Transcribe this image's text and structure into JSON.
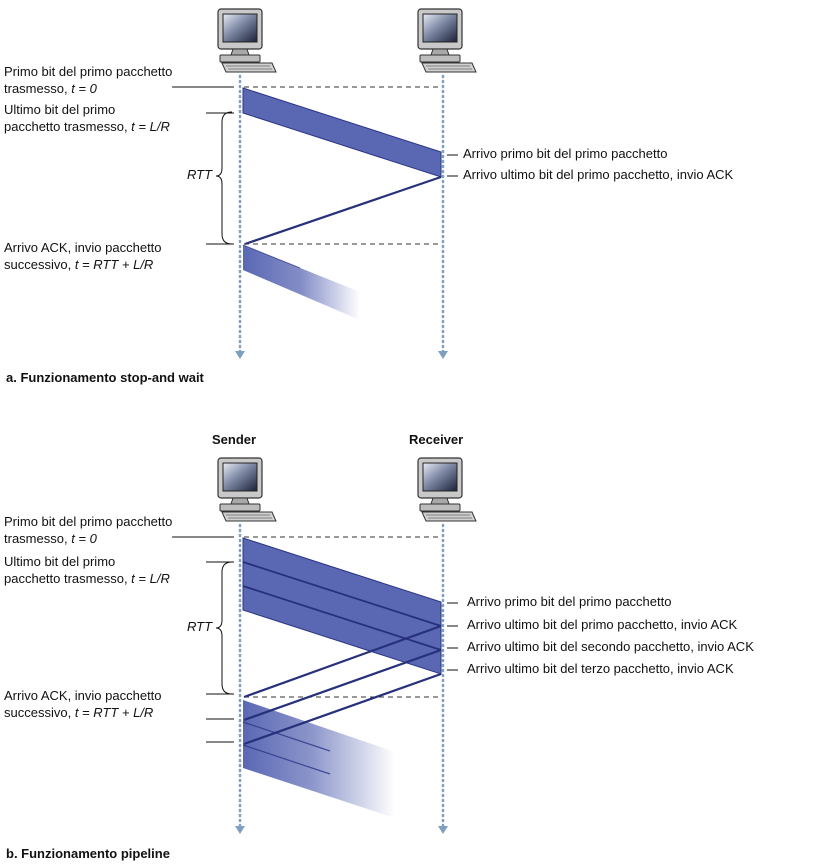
{
  "diagram_a": {
    "caption": "a. Funzionamento stop-and wait",
    "left_labels": {
      "first_bit_l1": "Primo bit del primo pacchetto",
      "first_bit_l2_prefix": "trasmesso, ",
      "first_bit_l2_formula": "t = 0",
      "last_bit_l1": "Ultimo bit del primo",
      "last_bit_l2_prefix": "pacchetto trasmesso, ",
      "last_bit_l2_formula": "t = L/R",
      "rtt": "RTT",
      "ack_l1": "Arrivo ACK, invio pacchetto",
      "ack_l2_prefix": "successivo, ",
      "ack_l2_formula": "t = RTT + L/R"
    },
    "right_labels": [
      "Arrivo primo bit del primo pacchetto",
      "Arrivo ultimo bit del primo pacchetto, invio ACK"
    ]
  },
  "diagram_b": {
    "caption": "b. Funzionamento pipeline",
    "sender_label": "Sender",
    "receiver_label": "Receiver",
    "left_labels": {
      "first_bit_l1": "Primo bit del primo pacchetto",
      "first_bit_l2_prefix": "trasmesso, ",
      "first_bit_l2_formula": "t = 0",
      "last_bit_l1": "Ultimo bit del primo",
      "last_bit_l2_prefix": "pacchetto trasmesso, ",
      "last_bit_l2_formula": "t = L/R",
      "rtt": "RTT",
      "ack_l1": "Arrivo ACK, invio pacchetto",
      "ack_l2_prefix": "successivo, ",
      "ack_l2_formula": "t = RTT + L/R"
    },
    "right_labels": [
      "Arrivo primo bit del primo pacchetto",
      "Arrivo ultimo bit del primo pacchetto, invio ACK",
      "Arrivo ultimo bit del secondo pacchetto, invio ACK",
      "Arrivo ultimo bit del terzo pacchetto, invio ACK"
    ]
  },
  "colors": {
    "packet_fill": "#5a68b4",
    "packet_edge": "#2a3585",
    "ack_line": "#27307a",
    "timeline": "#7f9fc0",
    "dashed": "#333333"
  },
  "icons": [
    "computer-icon"
  ]
}
